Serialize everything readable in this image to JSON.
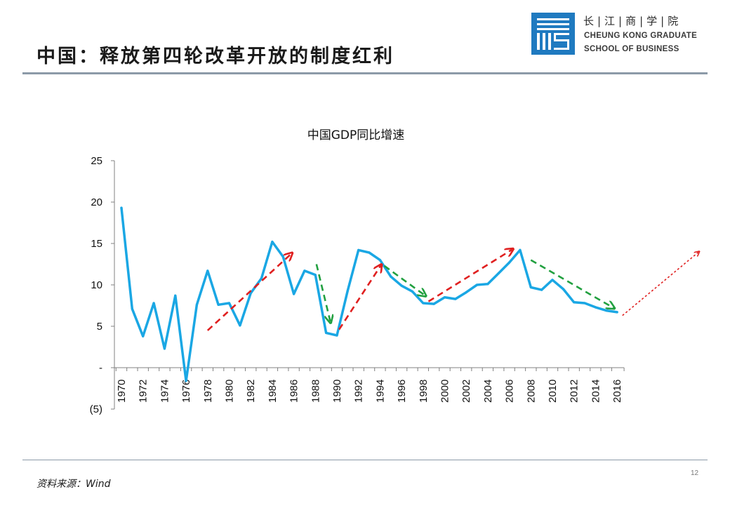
{
  "slide": {
    "title": "中国：释放第四轮改革开放的制度红利",
    "source": "资料来源：Wind",
    "page_number": "12"
  },
  "logo": {
    "cn_name": "长|江|商|学|院",
    "en_line1": "CHEUNG KONG GRADUATE",
    "en_line2": "SCHOOL OF BUSINESS",
    "color": "#1f7ac0"
  },
  "colors": {
    "series": "#1aa7e4",
    "up_arrow": "#e02020",
    "down_arrow": "#22a040",
    "axis": "#808080"
  },
  "chart_data": {
    "type": "line",
    "title": "中国GDP同比增速",
    "xlabel": "",
    "ylabel": "",
    "ylim": [
      -5,
      25
    ],
    "yticks": [
      {
        "value": 25,
        "label": "25"
      },
      {
        "value": 20,
        "label": "20"
      },
      {
        "value": 15,
        "label": "15"
      },
      {
        "value": 10,
        "label": "10"
      },
      {
        "value": 5,
        "label": "5"
      },
      {
        "value": 0,
        "label": "-"
      },
      {
        "value": -5,
        "label": "(5)"
      }
    ],
    "xticks": [
      "1970",
      "1972",
      "1974",
      "1976",
      "1978",
      "1980",
      "1982",
      "1984",
      "1986",
      "1988",
      "1990",
      "1992",
      "1994",
      "1996",
      "1998",
      "2000",
      "2002",
      "2004",
      "2006",
      "2008",
      "2010",
      "2012",
      "2014",
      "2016"
    ],
    "series": [
      {
        "name": "中国GDP同比增速",
        "x": [
          1970,
          1971,
          1972,
          1973,
          1974,
          1975,
          1976,
          1977,
          1978,
          1979,
          1980,
          1981,
          1982,
          1983,
          1984,
          1985,
          1986,
          1987,
          1988,
          1989,
          1990,
          1991,
          1992,
          1993,
          1994,
          1995,
          1996,
          1997,
          1998,
          1999,
          2000,
          2001,
          2002,
          2003,
          2004,
          2005,
          2006,
          2007,
          2008,
          2009,
          2010,
          2011,
          2012,
          2013,
          2014,
          2015,
          2016
        ],
        "values": [
          19.3,
          7.1,
          3.8,
          7.8,
          2.3,
          8.7,
          -1.6,
          7.6,
          11.7,
          7.6,
          7.8,
          5.1,
          9.0,
          10.8,
          15.2,
          13.4,
          8.9,
          11.7,
          11.2,
          4.2,
          3.9,
          9.3,
          14.2,
          13.9,
          13.0,
          11.0,
          9.9,
          9.2,
          7.8,
          7.7,
          8.5,
          8.3,
          9.1,
          10.0,
          10.1,
          11.4,
          12.7,
          14.2,
          9.7,
          9.4,
          10.6,
          9.5,
          7.9,
          7.8,
          7.3,
          6.9,
          6.7
        ]
      }
    ],
    "trend_arrows": [
      {
        "direction": "up",
        "from": [
          1978,
          4.5
        ],
        "to": [
          1985.8,
          13.8
        ]
      },
      {
        "direction": "down",
        "from": [
          1988.1,
          12.5
        ],
        "to": [
          1989.4,
          5.5
        ]
      },
      {
        "direction": "up",
        "from": [
          1990.2,
          4.6
        ],
        "to": [
          1994.1,
          12.4
        ]
      },
      {
        "direction": "down",
        "from": [
          1994.4,
          12.3
        ],
        "to": [
          1998.2,
          8.7
        ]
      },
      {
        "direction": "up",
        "from": [
          1998.5,
          8.0
        ],
        "to": [
          2006.3,
          14.3
        ]
      },
      {
        "direction": "down",
        "from": [
          2008.0,
          13.0
        ],
        "to": [
          2015.7,
          7.2
        ]
      },
      {
        "direction": "up-dotted",
        "from": [
          2016.5,
          6.3
        ],
        "to": [
          2023.6,
          14.0
        ]
      }
    ]
  }
}
